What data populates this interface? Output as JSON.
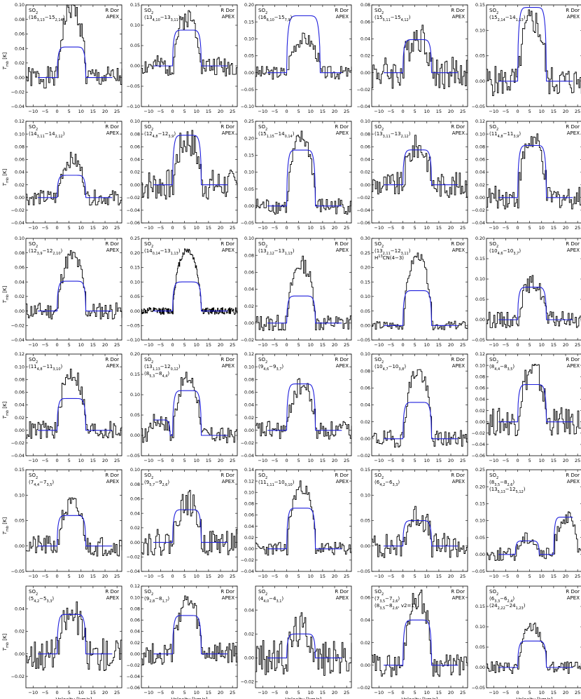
{
  "figure": {
    "x_tick_labels": [
      "−10",
      "−5",
      "0",
      "5",
      "10",
      "15",
      "20",
      "25"
    ],
    "x_axis_label": "Velocity [km/s]",
    "y_axis_label": "T",
    "y_axis_label_sub": "mb",
    "y_axis_label_unit": " [K]",
    "source_label": "R Dor",
    "telescope_label": "APEX"
  },
  "colors": {
    "observed": "#000000",
    "model": "#1f1fdc",
    "axis": "#000000"
  },
  "chart_data": [
    {
      "type": "line",
      "species": "SO2",
      "transition": "(16_{3,13}−15_{2,14})",
      "xlim": [
        -13,
        27
      ],
      "ylim": [
        -0.04,
        0.1
      ],
      "yticks": [
        "−0.04",
        "−0.02",
        "0.00",
        "0.02",
        "0.04",
        "0.06",
        "0.08",
        "0.10"
      ],
      "model_peak": 0.042,
      "obs_peak": 0.095,
      "noise": 0.015,
      "model_center": 6,
      "model_halfwidth": 6,
      "seed": 1
    },
    {
      "type": "line",
      "species": "SO2",
      "transition": "(13_{4,10}−13_{3,11})",
      "xlim": [
        -13,
        27
      ],
      "ylim": [
        -0.1,
        0.15
      ],
      "yticks": [
        "−0.10",
        "−0.05",
        "0.00",
        "0.05",
        "0.10",
        "0.15"
      ],
      "model_peak": 0.088,
      "obs_peak": 0.12,
      "noise": 0.025,
      "model_center": 6,
      "model_halfwidth": 6,
      "seed": 2
    },
    {
      "type": "line",
      "species": "SO2",
      "transition": "(16_{6,10}−15_{7,9})",
      "xlim": [
        -13,
        27
      ],
      "ylim": [
        -0.1,
        0.2
      ],
      "yticks": [
        "−0.10",
        "−0.05",
        "0.00",
        "0.05",
        "0.10",
        "0.15",
        "0.20"
      ],
      "model_peak": 0.168,
      "obs_peak": 0.1,
      "noise": 0.02,
      "model_center": 7,
      "model_halfwidth": 7,
      "seed": 3
    },
    {
      "type": "line",
      "species": "SO2",
      "transition": "(15_{5,11}−15_{4,12})",
      "xlim": [
        -13,
        27
      ],
      "ylim": [
        -0.04,
        0.08
      ],
      "yticks": [
        "−0.04",
        "−0.02",
        "0.00",
        "0.02",
        "0.04",
        "0.06",
        "0.08"
      ],
      "model_peak": 0.039,
      "obs_peak": 0.045,
      "noise": 0.02,
      "model_center": 6,
      "model_halfwidth": 6,
      "seed": 4
    },
    {
      "type": "line",
      "species": "SO2",
      "transition": "(15_{2,14}−14_{1,13})",
      "xlim": [
        -13,
        27
      ],
      "ylim": [
        -0.05,
        0.15
      ],
      "yticks": [
        "−0.05",
        "0.00",
        "0.05",
        "0.10",
        "0.15"
      ],
      "model_peak": 0.145,
      "obs_peak": 0.12,
      "noise": 0.03,
      "model_center": 6,
      "model_halfwidth": 6,
      "seed": 5
    },
    {
      "type": "line",
      "species": "SO2",
      "transition": "(14_{3,11}−14_{2,12})",
      "xlim": [
        -13,
        27
      ],
      "ylim": [
        -0.04,
        0.12
      ],
      "yticks": [
        "−0.04",
        "−0.02",
        "0.00",
        "0.02",
        "0.04",
        "0.06",
        "0.08",
        "0.10",
        "0.12"
      ],
      "model_peak": 0.035,
      "obs_peak": 0.06,
      "noise": 0.012,
      "model_center": 6,
      "model_halfwidth": 6,
      "seed": 6
    },
    {
      "type": "line",
      "species": "SO2",
      "transition": "(12_{4,8}−12_{3,9})",
      "xlim": [
        -13,
        27
      ],
      "ylim": [
        -0.06,
        0.1
      ],
      "yticks": [
        "−0.06",
        "−0.04",
        "−0.02",
        "0.00",
        "0.02",
        "0.04",
        "0.06",
        "0.08",
        "0.10"
      ],
      "model_peak": 0.078,
      "obs_peak": 0.07,
      "noise": 0.025,
      "model_center": 6,
      "model_halfwidth": 6,
      "seed": 7
    },
    {
      "type": "line",
      "species": "SO2",
      "transition": "(15_{1,15}−14_{0,14})",
      "xlim": [
        -13,
        27
      ],
      "ylim": [
        -0.05,
        0.25
      ],
      "yticks": [
        "−0.05",
        "0.00",
        "0.05",
        "0.10",
        "0.15",
        "0.20",
        "0.25"
      ],
      "model_peak": 0.165,
      "obs_peak": 0.2,
      "noise": 0.025,
      "model_center": 6,
      "model_halfwidth": 6,
      "seed": 8
    },
    {
      "type": "line",
      "species": "SO2",
      "transition": "(13_{3,11}−13_{2,12})",
      "xlim": [
        -13,
        27
      ],
      "ylim": [
        -0.06,
        0.1
      ],
      "yticks": [
        "−0.06",
        "−0.04",
        "−0.02",
        "0.00",
        "0.02",
        "0.04",
        "0.06",
        "0.08",
        "0.10"
      ],
      "model_peak": 0.055,
      "obs_peak": 0.06,
      "noise": 0.02,
      "model_center": 6,
      "model_halfwidth": 6,
      "seed": 9
    },
    {
      "type": "line",
      "species": "SO2",
      "transition": "(11_{4,8}−11_{3,9})",
      "xlim": [
        -13,
        27
      ],
      "ylim": [
        -0.04,
        0.12
      ],
      "yticks": [
        "−0.04",
        "−0.02",
        "0.00",
        "0.02",
        "0.04",
        "0.06",
        "0.08",
        "0.10",
        "0.12"
      ],
      "model_peak": 0.082,
      "obs_peak": 0.09,
      "noise": 0.018,
      "model_center": 6,
      "model_halfwidth": 6,
      "seed": 10
    },
    {
      "type": "line",
      "species": "SO2",
      "transition": "(12_{3,9}−12_{2,10})",
      "xlim": [
        -13,
        27
      ],
      "ylim": [
        -0.04,
        0.1
      ],
      "yticks": [
        "−0.04",
        "−0.02",
        "0.00",
        "0.02",
        "0.04",
        "0.06",
        "0.08",
        "0.10"
      ],
      "model_peak": 0.041,
      "obs_peak": 0.075,
      "noise": 0.012,
      "model_center": 6,
      "model_halfwidth": 6,
      "seed": 11
    },
    {
      "type": "line",
      "species": "SO2",
      "transition": "(14_{0,14}−13_{1,13})",
      "xlim": [
        -13,
        27
      ],
      "ylim": [
        -0.1,
        0.25
      ],
      "yticks": [
        "−0.10",
        "−0.05",
        "0.00",
        "0.05",
        "0.10",
        "0.15",
        "0.20",
        "0.25"
      ],
      "model_peak": 0.1,
      "obs_peak": 0.21,
      "noise": 0.012,
      "model_center": 6,
      "model_halfwidth": 6,
      "dense": true,
      "seed": 12
    },
    {
      "type": "line",
      "species": "SO2",
      "transition": "(13_{2,12}−13_{1,13})",
      "xlim": [
        -13,
        27
      ],
      "ylim": [
        -0.02,
        0.1
      ],
      "yticks": [
        "−0.02",
        "0.00",
        "0.02",
        "0.04",
        "0.06",
        "0.08",
        "0.10"
      ],
      "model_peak": 0.032,
      "obs_peak": 0.07,
      "noise": 0.01,
      "model_center": 6,
      "model_halfwidth": 6,
      "seed": 13
    },
    {
      "type": "line",
      "species": "SO2",
      "transition": "(13_{2,11}−12_{3,11})",
      "extra": "H^{13}CN(4−3)",
      "xlim": [
        -13,
        27
      ],
      "ylim": [
        -0.05,
        0.3
      ],
      "yticks": [
        "−0.05",
        "0.00",
        "0.05",
        "0.10",
        "0.15",
        "0.20",
        "0.25",
        "0.30"
      ],
      "model_peak": 0.12,
      "obs_peak": 0.24,
      "noise": 0.015,
      "model_center": 6,
      "model_halfwidth": 6,
      "seed": 14
    },
    {
      "type": "line",
      "species": "SO2",
      "transition": "(10_{4,6}−10_{3,7})",
      "xlim": [
        -13,
        27
      ],
      "ylim": [
        -0.05,
        0.2
      ],
      "yticks": [
        "−0.05",
        "0.00",
        "0.05",
        "0.10",
        "0.15",
        "0.20"
      ],
      "model_peak": 0.08,
      "obs_peak": 0.09,
      "noise": 0.02,
      "model_center": 6,
      "model_halfwidth": 6,
      "seed": 15
    },
    {
      "type": "line",
      "species": "SO2",
      "transition": "(11_{4,8}−11_{3,10})",
      "xlim": [
        -13,
        27
      ],
      "ylim": [
        -0.04,
        0.12
      ],
      "yticks": [
        "−0.04",
        "−0.02",
        "0.00",
        "0.02",
        "0.04",
        "0.06",
        "0.08",
        "0.10",
        "0.12"
      ],
      "model_peak": 0.05,
      "obs_peak": 0.09,
      "noise": 0.015,
      "model_center": 6,
      "model_halfwidth": 6,
      "seed": 16
    },
    {
      "type": "line",
      "species": "SO2",
      "transition": "(13_{1,13}−12_{0,12})",
      "extra": "(8_{5,3}−8_{4,4})",
      "xlim": [
        -13,
        27
      ],
      "ylim": [
        -0.05,
        0.2
      ],
      "yticks": [
        "−0.05",
        "0.00",
        "0.05",
        "0.10",
        "0.15",
        "0.20"
      ],
      "model_peak": 0.11,
      "obs_peak": 0.14,
      "noise": 0.02,
      "model_center": 6,
      "model_halfwidth": 6,
      "second_peak": 0.038,
      "second_center": -6,
      "second_halfwidth": 5,
      "seed": 17
    },
    {
      "type": "line",
      "species": "SO2",
      "transition": "(9_{4,6}−9_{3,7})",
      "xlim": [
        -13,
        27
      ],
      "ylim": [
        -0.04,
        0.12
      ],
      "yticks": [
        "−0.04",
        "−0.02",
        "0.00",
        "0.02",
        "0.04",
        "0.06",
        "0.08",
        "0.10",
        "0.12"
      ],
      "model_peak": 0.073,
      "obs_peak": 0.07,
      "noise": 0.015,
      "model_center": 6,
      "model_halfwidth": 6,
      "seed": 18
    },
    {
      "type": "line",
      "species": "SO2",
      "transition": "(10_{4,7}−10_{3,8})",
      "xlim": [
        -13,
        27
      ],
      "ylim": [
        -0.02,
        0.1
      ],
      "yticks": [
        "−0.02",
        "0.00",
        "0.02",
        "0.04",
        "0.06",
        "0.08",
        "0.10"
      ],
      "model_peak": 0.043,
      "obs_peak": 0.08,
      "noise": 0.01,
      "model_center": 6,
      "model_halfwidth": 6,
      "seed": 19
    },
    {
      "type": "line",
      "species": "SO2",
      "transition": "(8_{4,4}−8_{3,5})",
      "xlim": [
        -13,
        27
      ],
      "ylim": [
        -0.06,
        0.12
      ],
      "yticks": [
        "−0.06",
        "−0.04",
        "−0.02",
        "0.00",
        "0.02",
        "0.04",
        "0.06",
        "0.08",
        "0.10",
        "0.12"
      ],
      "model_peak": 0.066,
      "obs_peak": 0.09,
      "noise": 0.025,
      "model_center": 6,
      "model_halfwidth": 6,
      "seed": 20
    },
    {
      "type": "line",
      "species": "SO2",
      "transition": "(7_{4,4}−7_{3,5})",
      "xlim": [
        -13,
        27
      ],
      "ylim": [
        -0.05,
        0.15
      ],
      "yticks": [
        "−0.05",
        "0.00",
        "0.05",
        "0.10",
        "0.15"
      ],
      "model_peak": 0.06,
      "obs_peak": 0.08,
      "noise": 0.02,
      "model_center": 6,
      "model_halfwidth": 6,
      "seed": 21
    },
    {
      "type": "line",
      "species": "SO2",
      "transition": "(9_{5,7}−9_{2,6})",
      "xlim": [
        -13,
        27
      ],
      "ylim": [
        -0.04,
        0.1
      ],
      "yticks": [
        "−0.04",
        "−0.02",
        "0.00",
        "0.02",
        "0.04",
        "0.06",
        "0.08",
        "0.10"
      ],
      "model_peak": 0.045,
      "obs_peak": 0.055,
      "noise": 0.018,
      "model_center": 6,
      "model_halfwidth": 6,
      "seed": 22
    },
    {
      "type": "line",
      "species": "SO2",
      "transition": "(11_{1,11}−10_{0,10})",
      "xlim": [
        -13,
        27
      ],
      "ylim": [
        -0.04,
        0.14
      ],
      "yticks": [
        "−0.04",
        "−0.02",
        "0.00",
        "0.02",
        "0.04",
        "0.06",
        "0.08",
        "0.10",
        "0.12",
        "0.14"
      ],
      "model_peak": 0.072,
      "obs_peak": 0.11,
      "noise": 0.012,
      "model_center": 6,
      "model_halfwidth": 6,
      "seed": 23
    },
    {
      "type": "line",
      "species": "SO2",
      "transition": "(6_{4,2}−6_{3,3})",
      "xlim": [
        -13,
        27
      ],
      "ylim": [
        -0.05,
        0.15
      ],
      "yticks": [
        "−0.05",
        "0.00",
        "0.05",
        "0.10",
        "0.15"
      ],
      "model_peak": 0.05,
      "obs_peak": 0.06,
      "noise": 0.025,
      "model_center": 6,
      "model_halfwidth": 6,
      "seed": 24
    },
    {
      "type": "line",
      "species": "SO2",
      "transition": "(8_{3,5}−8_{2,6})",
      "extra": "(13_{5,13}−12_{5,12})",
      "xlim": [
        -13,
        27
      ],
      "ylim": [
        -0.05,
        0.25
      ],
      "yticks": [
        "−0.05",
        "0.00",
        "0.05",
        "0.10",
        "0.15",
        "0.20",
        "0.25"
      ],
      "model_peak": 0.04,
      "obs_peak": 0.05,
      "noise": 0.02,
      "model_center": 4,
      "model_halfwidth": 5,
      "second_peak": 0.11,
      "second_center": 20,
      "second_halfwidth": 5,
      "seed": 25
    },
    {
      "type": "line",
      "species": "SO2",
      "transition": "(5_{4,2}−5_{3,3})",
      "xlim": [
        -13,
        27
      ],
      "ylim": [
        -0.03,
        0.06
      ],
      "yticks": [
        "−0.02",
        "0.00",
        "0.02",
        "0.04"
      ],
      "model_peak": 0.035,
      "obs_peak": 0.035,
      "noise": 0.015,
      "model_center": 6,
      "model_halfwidth": 6,
      "seed": 26
    },
    {
      "type": "line",
      "species": "SO2",
      "transition": "(9_{2,8}−8_{1,7})",
      "xlim": [
        -13,
        27
      ],
      "ylim": [
        -0.06,
        0.12
      ],
      "yticks": [
        "−0.06",
        "−0.04",
        "−0.02",
        "0.00",
        "0.02",
        "0.04",
        "0.06",
        "0.08",
        "0.10",
        "0.12"
      ],
      "model_peak": 0.068,
      "obs_peak": 0.09,
      "noise": 0.02,
      "model_center": 6,
      "model_halfwidth": 6,
      "seed": 27
    },
    {
      "type": "line",
      "species": "SO2",
      "transition": "(4_{4,0}−4_{3,1})",
      "xlim": [
        -13,
        27
      ],
      "ylim": [
        -0.025,
        0.06
      ],
      "yticks": [
        "−0.02",
        "0.00",
        "0.02",
        "0.04"
      ],
      "model_peak": 0.02,
      "obs_peak": 0.025,
      "noise": 0.015,
      "model_center": 6,
      "model_halfwidth": 6,
      "seed": 28
    },
    {
      "type": "line",
      "species": "SO2",
      "transition": "(7_{3,5}−7_{2,6})",
      "extra": "(8_{3,5}−8_{2,6}, v_2=1)",
      "xlim": [
        -13,
        27
      ],
      "ylim": [
        -0.02,
        0.07
      ],
      "yticks": [
        "−0.02",
        "0.00",
        "0.02",
        "0.04",
        "0.06"
      ],
      "model_peak": 0.04,
      "obs_peak": 0.06,
      "noise": 0.01,
      "model_center": 6,
      "model_halfwidth": 6,
      "seed": 29
    },
    {
      "type": "line",
      "species": "SO2",
      "transition": "(6_{3,3}−6_{2,4})",
      "extra": "(24_{2,22}−24_{1,23})",
      "xlim": [
        -13,
        27
      ],
      "ylim": [
        -0.05,
        0.2
      ],
      "yticks": [
        "−0.05",
        "0.00",
        "0.05",
        "0.10",
        "0.15"
      ],
      "model_peak": 0.065,
      "obs_peak": 0.1,
      "noise": 0.015,
      "model_center": 6,
      "model_halfwidth": 6,
      "seed": 30
    }
  ]
}
